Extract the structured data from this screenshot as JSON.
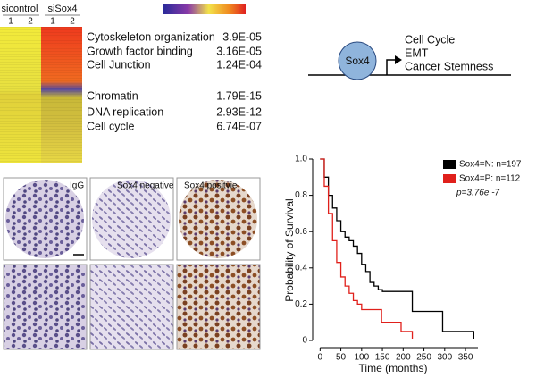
{
  "heatmap": {
    "groups": [
      "sicontrol",
      "siSox4"
    ],
    "lanes": [
      "1",
      "2",
      "1",
      "2"
    ]
  },
  "go_terms": [
    {
      "term": "Cytoskeleton organization",
      "p": "3.9E-05"
    },
    {
      "term": "Growth factor binding",
      "p": "3.16E-05"
    },
    {
      "term": "Cell Junction",
      "p": "1.24E-04"
    },
    {
      "term": "Chromatin",
      "p": "1.79E-15"
    },
    {
      "term": "DNA replication",
      "p": "2.93E-12"
    },
    {
      "term": "Cell cycle",
      "p": "6.74E-07"
    }
  ],
  "diagram": {
    "node": "Sox4",
    "targets": [
      "Cell Cycle",
      "EMT",
      "Cancer Stemness"
    ]
  },
  "histology": {
    "panels": [
      "IgG",
      "Sox4 negative",
      "Sox4 positvie"
    ]
  },
  "chart_data": {
    "type": "line",
    "step": true,
    "xlabel": "Time (months)",
    "ylabel": "Probability of Survival",
    "annotation": "p=3.76e -7",
    "xlim": [
      -5,
      380
    ],
    "ylim": [
      0,
      1.0
    ],
    "xticks": [
      0,
      50,
      100,
      150,
      200,
      250,
      300,
      350
    ],
    "yticks": [
      0,
      0.2,
      0.4,
      0.6,
      0.8,
      {
        "value": 1.0,
        "label": "1.0"
      }
    ],
    "series": [
      {
        "name": "Sox4=N: n=197",
        "color": "#000000",
        "x": [
          0,
          10,
          20,
          30,
          40,
          50,
          60,
          70,
          80,
          90,
          100,
          110,
          120,
          130,
          140,
          150,
          222,
          295,
          370
        ],
        "values": [
          1.0,
          0.9,
          0.8,
          0.73,
          0.66,
          0.6,
          0.57,
          0.55,
          0.52,
          0.48,
          0.42,
          0.38,
          0.32,
          0.3,
          0.28,
          0.27,
          0.16,
          0.05,
          0.01
        ]
      },
      {
        "name": "Sox4=P: n=112",
        "color": "#e0201b",
        "x": [
          0,
          10,
          20,
          30,
          40,
          50,
          60,
          70,
          80,
          90,
          100,
          148,
          195,
          222
        ],
        "values": [
          1.0,
          0.85,
          0.7,
          0.55,
          0.43,
          0.35,
          0.3,
          0.26,
          0.22,
          0.2,
          0.17,
          0.1,
          0.05,
          0.01
        ]
      }
    ]
  }
}
